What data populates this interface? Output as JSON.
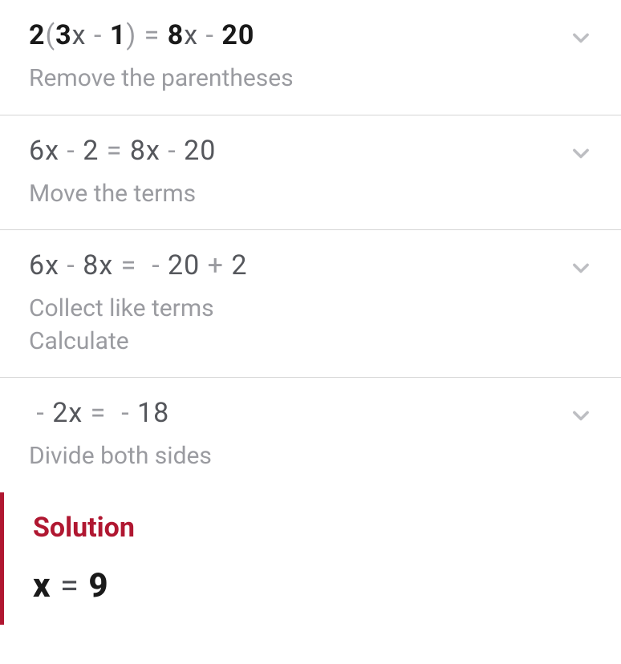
{
  "colors": {
    "bold": "#1a1a1a",
    "faint": "#9a9ba0",
    "normal": "#55575c",
    "divider": "#d6d6d6",
    "accent": "#b01731",
    "chevron": "#bdbec2",
    "background": "#ffffff"
  },
  "fontsize": {
    "equation": 34,
    "caption": 30,
    "solution_title": 34,
    "solution_eq": 42
  },
  "steps": [
    {
      "equation_parts": [
        {
          "t": "2",
          "c": "b"
        },
        {
          "t": "(",
          "c": "lp"
        },
        {
          "t": "3",
          "c": "b"
        },
        {
          "t": "x",
          "c": ""
        },
        {
          "t": "-",
          "c": "op"
        },
        {
          "t": "1",
          "c": "b"
        },
        {
          "t": ")",
          "c": "lp"
        },
        {
          "t": "=",
          "c": "op"
        },
        {
          "t": "8",
          "c": "b"
        },
        {
          "t": "x",
          "c": ""
        },
        {
          "t": "-",
          "c": "op"
        },
        {
          "t": "20",
          "c": "b"
        }
      ],
      "captions": [
        "Remove the parentheses"
      ]
    },
    {
      "equation_parts": [
        {
          "t": "6",
          "c": ""
        },
        {
          "t": "x",
          "c": ""
        },
        {
          "t": "-",
          "c": "op"
        },
        {
          "t": "2",
          "c": ""
        },
        {
          "t": "=",
          "c": "op"
        },
        {
          "t": "8",
          "c": ""
        },
        {
          "t": "x",
          "c": ""
        },
        {
          "t": "-",
          "c": "op"
        },
        {
          "t": "20",
          "c": ""
        }
      ],
      "captions": [
        "Move the terms"
      ]
    },
    {
      "equation_parts": [
        {
          "t": "6",
          "c": ""
        },
        {
          "t": "x",
          "c": ""
        },
        {
          "t": "-",
          "c": "op"
        },
        {
          "t": "8",
          "c": ""
        },
        {
          "t": "x",
          "c": ""
        },
        {
          "t": "=",
          "c": "op"
        },
        {
          "t": "-",
          "c": "op"
        },
        {
          "t": "20",
          "c": ""
        },
        {
          "t": "+",
          "c": "op"
        },
        {
          "t": "2",
          "c": ""
        }
      ],
      "captions": [
        "Collect like terms",
        "Calculate"
      ]
    },
    {
      "equation_parts": [
        {
          "t": "-",
          "c": "op"
        },
        {
          "t": "2",
          "c": ""
        },
        {
          "t": "x",
          "c": ""
        },
        {
          "t": "=",
          "c": "op"
        },
        {
          "t": "-",
          "c": "op"
        },
        {
          "t": "18",
          "c": ""
        }
      ],
      "captions": [
        "Divide both sides"
      ]
    }
  ],
  "solution": {
    "title": "Solution",
    "equation_parts": [
      {
        "t": "x",
        "c": "b"
      },
      {
        "t": "=",
        "c": "op"
      },
      {
        "t": "9",
        "c": "b"
      }
    ]
  }
}
